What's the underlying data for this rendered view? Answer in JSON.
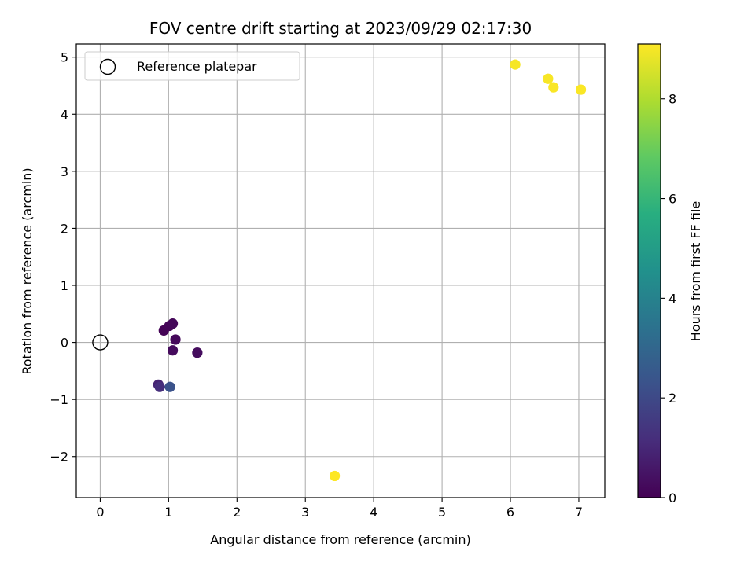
{
  "chart_data": {
    "type": "scatter",
    "title": "FOV centre drift starting at 2023/09/29 02:17:30",
    "xlabel": "Angular distance from reference (arcmin)",
    "ylabel": "Rotation from reference (arcmin)",
    "xlim": [
      -0.35,
      7.38
    ],
    "ylim": [
      -2.72,
      5.23
    ],
    "xticks": [
      0,
      1,
      2,
      3,
      4,
      5,
      6,
      7
    ],
    "yticks": [
      -2,
      -1,
      0,
      1,
      2,
      3,
      4,
      5
    ],
    "xtick_labels": [
      "0",
      "1",
      "2",
      "3",
      "4",
      "5",
      "6",
      "7"
    ],
    "ytick_labels": [
      "−2",
      "−1",
      "0",
      "1",
      "2",
      "3",
      "4",
      "5"
    ],
    "grid": true,
    "legend": {
      "position": "top-left",
      "entries": [
        "Reference platepar"
      ]
    },
    "reference_point": {
      "x": 0,
      "y": 0
    },
    "colorbar": {
      "label": "Hours from first FF file",
      "colormap": "viridis",
      "range": [
        0,
        9.1
      ],
      "ticks": [
        0,
        2,
        4,
        6,
        8
      ],
      "tick_labels": [
        "0",
        "2",
        "4",
        "6",
        "8"
      ]
    },
    "points": [
      {
        "x": 0.93,
        "y": 0.21,
        "hours": 0.05
      },
      {
        "x": 1.01,
        "y": 0.29,
        "hours": 0.1
      },
      {
        "x": 1.06,
        "y": 0.33,
        "hours": 0.15
      },
      {
        "x": 1.1,
        "y": 0.05,
        "hours": 0.2
      },
      {
        "x": 1.06,
        "y": -0.14,
        "hours": 0.25
      },
      {
        "x": 1.42,
        "y": -0.18,
        "hours": 0.3
      },
      {
        "x": 0.85,
        "y": -0.74,
        "hours": 0.9
      },
      {
        "x": 0.87,
        "y": -0.78,
        "hours": 1.2
      },
      {
        "x": 1.02,
        "y": -0.78,
        "hours": 2.3
      },
      {
        "x": 6.07,
        "y": 4.87,
        "hours": 9.0
      },
      {
        "x": 6.55,
        "y": 4.62,
        "hours": 9.02
      },
      {
        "x": 6.63,
        "y": 4.47,
        "hours": 9.04
      },
      {
        "x": 7.03,
        "y": 4.43,
        "hours": 9.06
      },
      {
        "x": 3.43,
        "y": -2.34,
        "hours": 9.1
      }
    ]
  }
}
